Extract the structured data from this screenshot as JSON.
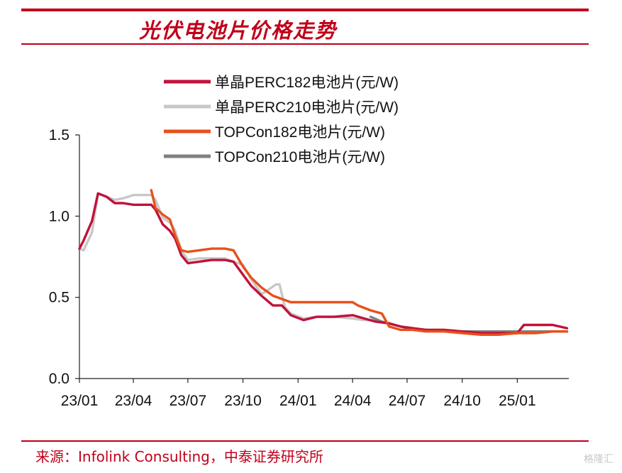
{
  "header": {
    "title": "光伏电池片价格走势"
  },
  "footer": {
    "source": "来源：Infolink Consulting，中泰证券研究所"
  },
  "watermark": {
    "text": "格隆汇"
  },
  "chart_data": {
    "type": "line",
    "title": "光伏电池片价格走势",
    "xlabel": "",
    "ylabel": "",
    "ylim": [
      0,
      1.5
    ],
    "yticks": [
      "0.0",
      "0.5",
      "1.0",
      "1.5"
    ],
    "xticks": [
      "23/01",
      "23/04",
      "23/07",
      "23/10",
      "24/01",
      "24/04",
      "24/07",
      "24/10",
      "25/01"
    ],
    "grid": false,
    "legend_position": "top-center",
    "series": [
      {
        "name": "单晶PERC182电池片(元/W)",
        "color": "#c0123a",
        "x": [
          "2023-01-01",
          "2023-01-08",
          "2023-01-22",
          "2023-02-01",
          "2023-02-15",
          "2023-03-01",
          "2023-03-15",
          "2023-04-01",
          "2023-04-20",
          "2023-05-01",
          "2023-05-08",
          "2023-05-20",
          "2023-06-01",
          "2023-06-10",
          "2023-06-20",
          "2023-07-01",
          "2023-07-20",
          "2023-08-10",
          "2023-09-01",
          "2023-09-15",
          "2023-10-01",
          "2023-10-15",
          "2023-11-01",
          "2023-11-20",
          "2023-12-05",
          "2023-12-20",
          "2024-01-10",
          "2024-02-01",
          "2024-03-01",
          "2024-04-01",
          "2024-04-20",
          "2024-05-10",
          "2024-06-01",
          "2024-06-20",
          "2024-07-10",
          "2024-08-01",
          "2024-09-01",
          "2024-10-01",
          "2024-11-01",
          "2024-12-01",
          "2025-01-01",
          "2025-01-12",
          "2025-02-01",
          "2025-03-01",
          "2025-03-25"
        ],
        "values": [
          0.8,
          0.85,
          0.97,
          1.14,
          1.12,
          1.08,
          1.08,
          1.07,
          1.07,
          1.07,
          1.04,
          0.95,
          0.91,
          0.86,
          0.76,
          0.71,
          0.72,
          0.73,
          0.73,
          0.72,
          0.64,
          0.57,
          0.51,
          0.45,
          0.45,
          0.39,
          0.36,
          0.38,
          0.38,
          0.39,
          0.37,
          0.35,
          0.34,
          0.32,
          0.31,
          0.3,
          0.3,
          0.29,
          0.28,
          0.28,
          0.28,
          0.33,
          0.33,
          0.33,
          0.31
        ]
      },
      {
        "name": "单晶PERC210电池片(元/W)",
        "color": "#c8c8c8",
        "x": [
          "2023-01-01",
          "2023-01-08",
          "2023-01-22",
          "2023-02-01",
          "2023-02-15",
          "2023-03-01",
          "2023-03-15",
          "2023-04-01",
          "2023-04-20",
          "2023-05-01",
          "2023-05-08",
          "2023-05-20",
          "2023-06-01",
          "2023-06-10",
          "2023-06-20",
          "2023-07-01",
          "2023-07-20",
          "2023-08-10",
          "2023-09-01",
          "2023-09-15",
          "2023-10-01",
          "2023-10-15",
          "2023-11-01",
          "2023-11-10",
          "2023-11-25",
          "2023-12-01",
          "2023-12-10",
          "2023-12-20",
          "2024-01-10",
          "2024-02-01",
          "2024-03-01",
          "2024-04-01",
          "2024-04-20",
          "2024-05-10",
          "2024-06-01",
          "2024-06-20",
          "2024-07-10",
          "2024-08-01",
          "2024-09-01",
          "2024-10-01",
          "2024-11-01",
          "2024-12-01",
          "2025-01-01",
          "2025-02-01",
          "2025-03-01",
          "2025-03-25"
        ],
        "values": [
          0.8,
          0.79,
          0.9,
          1.14,
          1.12,
          1.1,
          1.11,
          1.13,
          1.13,
          1.13,
          1.1,
          0.99,
          0.96,
          0.91,
          0.79,
          0.73,
          0.74,
          0.74,
          0.74,
          0.72,
          0.7,
          0.61,
          0.52,
          0.54,
          0.58,
          0.58,
          0.44,
          0.4,
          0.37,
          0.38,
          0.38,
          0.37,
          0.36,
          0.36,
          0.34,
          0.32,
          0.31,
          0.3,
          0.3,
          0.29,
          0.29,
          0.28,
          0.28,
          0.29,
          0.29,
          0.29
        ]
      },
      {
        "name": "TOPCon182电池片(元/W)",
        "color": "#e8501a",
        "x": [
          "2023-05-01",
          "2023-05-08",
          "2023-05-20",
          "2023-06-01",
          "2023-06-10",
          "2023-06-20",
          "2023-07-01",
          "2023-07-20",
          "2023-08-10",
          "2023-09-01",
          "2023-09-15",
          "2023-10-01",
          "2023-10-15",
          "2023-11-01",
          "2023-11-20",
          "2023-12-05",
          "2023-12-20",
          "2024-01-10",
          "2024-02-01",
          "2024-03-01",
          "2024-04-01",
          "2024-04-10",
          "2024-05-01",
          "2024-05-20",
          "2024-06-01",
          "2024-06-20",
          "2024-07-10",
          "2024-08-01",
          "2024-09-01",
          "2024-10-01",
          "2024-11-01",
          "2024-12-01",
          "2025-01-01",
          "2025-02-01",
          "2025-03-01",
          "2025-03-25"
        ],
        "values": [
          1.16,
          1.05,
          1.01,
          0.98,
          0.88,
          0.79,
          0.78,
          0.79,
          0.8,
          0.8,
          0.79,
          0.69,
          0.62,
          0.56,
          0.51,
          0.49,
          0.47,
          0.47,
          0.47,
          0.47,
          0.47,
          0.45,
          0.42,
          0.4,
          0.32,
          0.3,
          0.3,
          0.29,
          0.29,
          0.28,
          0.27,
          0.27,
          0.28,
          0.28,
          0.29,
          0.29
        ]
      },
      {
        "name": "TOPCon210电池片(元/W)",
        "color": "#808080",
        "x": [
          "2024-05-01",
          "2024-05-20",
          "2024-06-10",
          "2024-07-01",
          "2024-08-01",
          "2024-09-01",
          "2024-10-01",
          "2024-11-01",
          "2024-12-01",
          "2025-01-01",
          "2025-02-01",
          "2025-03-01",
          "2025-03-25"
        ],
        "values": [
          0.38,
          0.35,
          0.33,
          0.31,
          0.3,
          0.29,
          0.29,
          0.29,
          0.29,
          0.29,
          0.29,
          0.29,
          0.29
        ]
      }
    ]
  }
}
